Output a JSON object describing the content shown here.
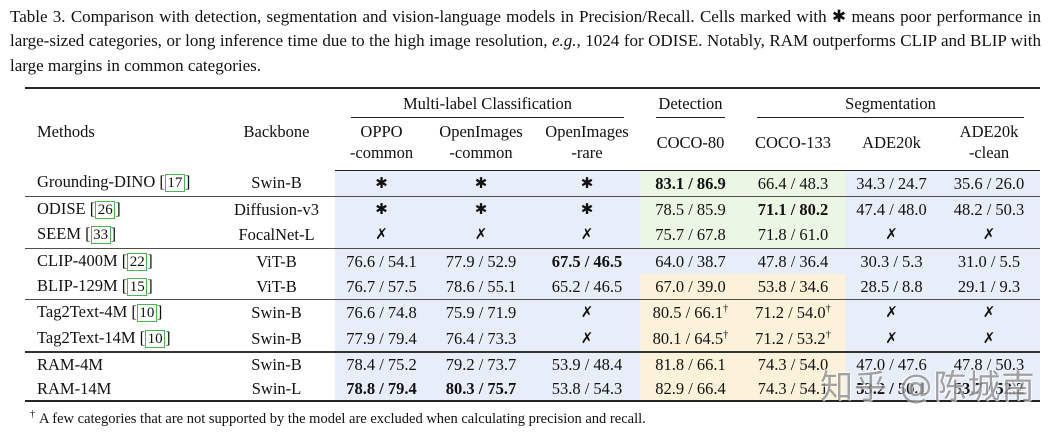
{
  "caption": {
    "part1": "Table 3. Comparison with detection, segmentation and vision-language models in Precision/Recall. Cells marked with ✱ means poor performance in large-sized categories, or long inference time due to the high image resolution, ",
    "italic": "e.g.,",
    "part2": " 1024 for ODISE. Notably, RAM outperforms CLIP and BLIP with large margins in common categories."
  },
  "colors": {
    "blue": "#e7eefa",
    "green": "#ebf6e4",
    "cream": "#fcf2da",
    "cite_border": "#4cb552"
  },
  "symbols": {
    "star": "✱",
    "cross": "✗",
    "dagger": "†"
  },
  "watermark": {
    "text": "知乎 @陈城南"
  },
  "footnote": {
    "symbol": "†",
    "text": "A few categories that are not supported by the model are excluded when calculating precision and recall."
  },
  "table": {
    "group_headers": [
      {
        "label": "Multi-label Classification",
        "span": 3
      },
      {
        "label": "Detection",
        "span": 1
      },
      {
        "label": "Segmentation",
        "span": 3
      }
    ],
    "columns": [
      {
        "key": "methods",
        "label": "Methods"
      },
      {
        "key": "backbone",
        "label": "Backbone"
      },
      {
        "key": "oppo-common",
        "line1": "OPPO",
        "line2": "-common"
      },
      {
        "key": "openimages-common",
        "line1": "OpenImages",
        "line2": "-common"
      },
      {
        "key": "openimages-rare",
        "line1": "OpenImages",
        "line2": "-rare"
      },
      {
        "key": "coco-80",
        "line1": "COCO-80",
        "line2": ""
      },
      {
        "key": "coco-133",
        "line1": "COCO-133",
        "line2": ""
      },
      {
        "key": "ade20k",
        "line1": "ADE20k",
        "line2": ""
      },
      {
        "key": "ade20k-clean",
        "line1": "ADE20k",
        "line2": "-clean"
      }
    ],
    "rows": [
      {
        "method": "Grounding-DINO",
        "cite": "17",
        "backbone": "Swin-B",
        "cells": [
          {
            "sym": "star",
            "bg": "blue"
          },
          {
            "sym": "star",
            "bg": "blue"
          },
          {
            "sym": "star",
            "bg": "blue"
          },
          {
            "v": "83.1 / 86.9",
            "b": true,
            "bg": "green"
          },
          {
            "v": "66.4 / 48.3",
            "bg": "green"
          },
          {
            "v": "34.3 / 24.7",
            "bg": "blue"
          },
          {
            "v": "35.6 / 26.0",
            "bg": "blue"
          }
        ]
      },
      {
        "method": "ODISE",
        "cite": "26",
        "backbone": "Diffusion-v3",
        "rule_before": "thin",
        "cells": [
          {
            "sym": "star",
            "bg": "blue"
          },
          {
            "sym": "star",
            "bg": "blue"
          },
          {
            "sym": "star",
            "bg": "blue"
          },
          {
            "v": "78.5 / 85.9",
            "bg": "green"
          },
          {
            "v": "71.1 / 80.2",
            "b": true,
            "bg": "green"
          },
          {
            "v": "47.4 / 48.0",
            "bg": "blue"
          },
          {
            "v": "48.2 / 50.3",
            "bg": "blue"
          }
        ]
      },
      {
        "method": "SEEM",
        "cite": "33",
        "backbone": "FocalNet-L",
        "cells": [
          {
            "sym": "cross",
            "bg": "blue"
          },
          {
            "sym": "cross",
            "bg": "blue"
          },
          {
            "sym": "cross",
            "bg": "blue"
          },
          {
            "v": "75.7 / 67.8",
            "bg": "green"
          },
          {
            "v": "71.8 / 61.0",
            "bg": "green"
          },
          {
            "sym": "cross",
            "bg": "blue"
          },
          {
            "sym": "cross",
            "bg": "blue"
          }
        ]
      },
      {
        "method": "CLIP-400M",
        "cite": "22",
        "backbone": "ViT-B",
        "rule_before": "thin",
        "cells": [
          {
            "v": "76.6 / 54.1",
            "bg": "blue"
          },
          {
            "v": "77.9 / 52.9",
            "bg": "blue"
          },
          {
            "v": "67.5 / 46.5",
            "b": true,
            "bg": "blue"
          },
          {
            "v": "64.0 / 38.7",
            "bg": "blue"
          },
          {
            "v": "47.8 / 36.4",
            "bg": "blue"
          },
          {
            "v": "30.3 / 5.3",
            "bg": "blue"
          },
          {
            "v": "31.0 / 5.5",
            "bg": "blue"
          }
        ]
      },
      {
        "method": "BLIP-129M",
        "cite": "15",
        "backbone": "ViT-B",
        "cells": [
          {
            "v": "76.7 / 57.5",
            "bg": "blue"
          },
          {
            "v": "78.6 / 55.1",
            "bg": "blue"
          },
          {
            "v": "65.2 / 46.5",
            "bg": "blue"
          },
          {
            "v": "67.0 / 39.0",
            "bg": "cream"
          },
          {
            "v": "53.8 / 34.6",
            "bg": "cream"
          },
          {
            "v": "28.5 / 8.8",
            "bg": "blue"
          },
          {
            "v": "29.1 / 9.3",
            "bg": "blue"
          }
        ]
      },
      {
        "method": "Tag2Text-4M",
        "cite": "10",
        "backbone": "Swin-B",
        "rule_before": "thin",
        "cells": [
          {
            "v": "76.6 / 74.8",
            "bg": "blue"
          },
          {
            "v": "75.9 / 71.9",
            "bg": "blue"
          },
          {
            "sym": "cross",
            "bg": "blue"
          },
          {
            "v": "80.5 / 66.1",
            "sup": "†",
            "bg": "cream"
          },
          {
            "v": "71.2 / 54.0",
            "sup": "†",
            "bg": "cream"
          },
          {
            "sym": "cross",
            "bg": "blue"
          },
          {
            "sym": "cross",
            "bg": "blue"
          }
        ]
      },
      {
        "method": "Tag2Text-14M",
        "cite": "10",
        "backbone": "Swin-B",
        "cells": [
          {
            "v": "77.9 / 79.4",
            "bg": "blue"
          },
          {
            "v": "76.4 / 73.3",
            "bg": "blue"
          },
          {
            "sym": "cross",
            "bg": "blue"
          },
          {
            "v": "80.1 / 64.5",
            "sup": "†",
            "bg": "cream"
          },
          {
            "v": "71.2 / 53.2",
            "sup": "†",
            "bg": "cream"
          },
          {
            "sym": "cross",
            "bg": "blue"
          },
          {
            "sym": "cross",
            "bg": "blue"
          }
        ]
      },
      {
        "method": "RAM-4M",
        "cite": null,
        "backbone": "Swin-B",
        "rule_before": "thick",
        "cells": [
          {
            "v": "78.4 / 75.2",
            "bg": "blue"
          },
          {
            "v": "79.2 / 73.7",
            "bg": "blue"
          },
          {
            "v": "53.9 / 48.4",
            "bg": "blue"
          },
          {
            "v": "81.8 / 66.1",
            "bg": "cream"
          },
          {
            "v": "74.3 / 54.0",
            "bg": "cream"
          },
          {
            "v": "47.0 / 47.6",
            "bg": "blue"
          },
          {
            "v": "47.8 / 50.3",
            "bg": "blue"
          }
        ]
      },
      {
        "method": "RAM-14M",
        "cite": null,
        "backbone": "Swin-L",
        "cells": [
          {
            "v": "78.8 / 79.4",
            "b": true,
            "bg": "blue"
          },
          {
            "v": "80.3 / 75.7",
            "b": true,
            "bg": "blue"
          },
          {
            "v": "53.8 / 54.3",
            "bg": "blue"
          },
          {
            "v": "82.9 / 66.4",
            "bg": "cream"
          },
          {
            "v": "74.3 / 54.1",
            "bg": "cream"
          },
          {
            "v": "53.2 / 50.1",
            "b": true,
            "bg": "blue"
          },
          {
            "v": "53.7 / 52.2",
            "b": true,
            "bg": "blue"
          }
        ]
      }
    ]
  }
}
